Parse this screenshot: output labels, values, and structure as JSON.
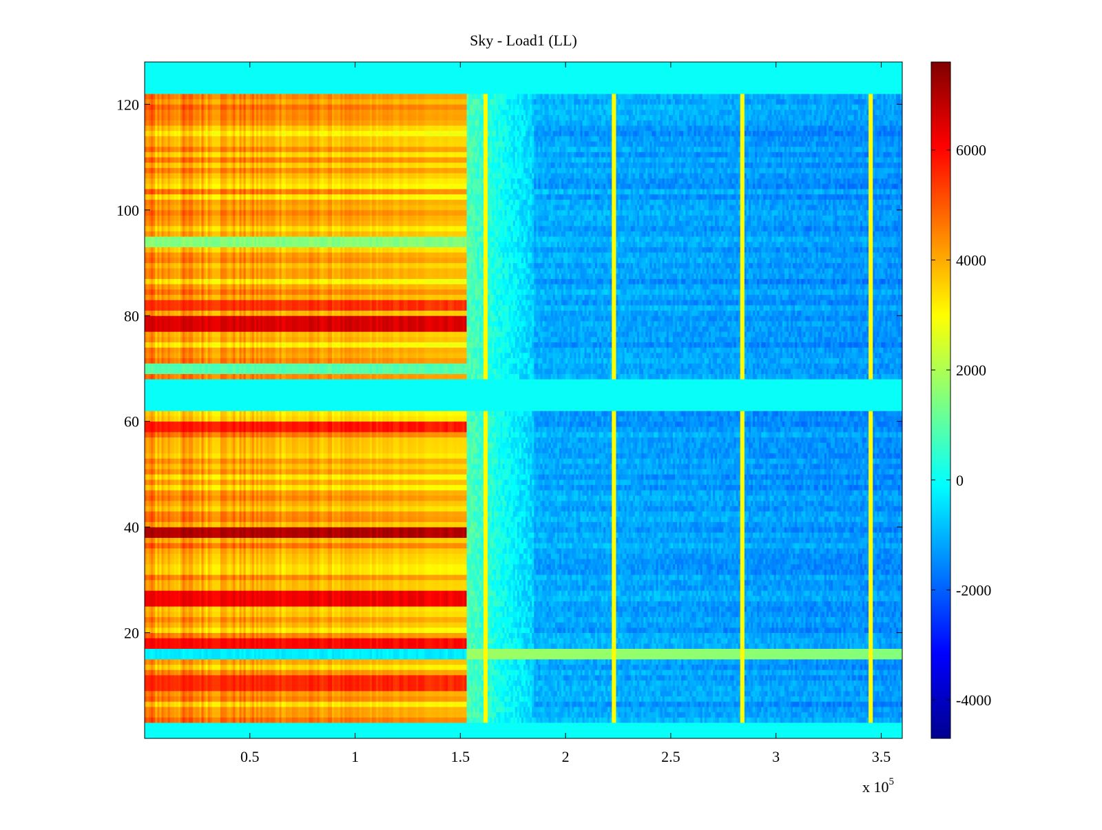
{
  "chart_data": {
    "type": "heatmap",
    "title": "Sky - Load1 (LL)",
    "xlabel": "",
    "ylabel": "",
    "x_exponent_label": "x 10",
    "x_exponent_power": "5",
    "xlim": [
      0,
      3.6
    ],
    "ylim": [
      0,
      128
    ],
    "x_ticks": [
      0.5,
      1,
      1.5,
      2,
      2.5,
      3,
      3.5
    ],
    "x_tick_labels": [
      "0.5",
      "1",
      "1.5",
      "2",
      "2.5",
      "3",
      "3.5"
    ],
    "y_ticks": [
      20,
      40,
      60,
      80,
      100,
      120
    ],
    "y_tick_labels": [
      "20",
      "40",
      "60",
      "80",
      "100",
      "120"
    ],
    "colorbar": {
      "colormap": "jet",
      "clim": [
        -4700,
        7600
      ],
      "ticks": [
        -4000,
        -2000,
        0,
        2000,
        4000,
        6000
      ],
      "tick_labels": [
        "-4000",
        "-2000",
        "0",
        "2000",
        "4000",
        "6000"
      ]
    },
    "blank_rows_value": 0,
    "blank_row_ranges": [
      [
        0,
        3
      ],
      [
        61.5,
        67.5
      ],
      [
        121.5,
        128
      ]
    ],
    "data_row_ranges": [
      [
        3,
        61.5
      ],
      [
        67.5,
        121.5
      ]
    ],
    "regions": [
      {
        "name": "early",
        "x_range": [
          0,
          1.53
        ],
        "typical_value": 4200
      },
      {
        "name": "transition",
        "x_range": [
          1.53,
          1.85
        ],
        "typical_value": 200
      },
      {
        "name": "late",
        "x_range": [
          1.85,
          3.6
        ],
        "typical_value": -1100
      }
    ],
    "hot_rows": [
      {
        "y": 78.5,
        "value": 6500
      },
      {
        "y": 39,
        "value": 7000
      },
      {
        "y": 26.5,
        "value": 6200
      },
      {
        "y": 18,
        "value": 6000
      },
      {
        "y": 59,
        "value": 5800
      },
      {
        "y": 10.5,
        "value": 5600
      },
      {
        "y": 82,
        "value": 5500
      }
    ],
    "cool_rows_in_early_region": [
      {
        "y": 16,
        "value": -300
      },
      {
        "y": 70,
        "value": 900
      },
      {
        "y": 94,
        "value": 1500
      }
    ],
    "vertical_streaks": [
      {
        "x": 1.62,
        "value": 3000
      },
      {
        "x": 2.23,
        "value": 3000
      },
      {
        "x": 2.84,
        "value": 3000
      },
      {
        "x": 3.45,
        "value": 3000
      }
    ],
    "horizontal_streak": {
      "y": 16,
      "x_range": [
        1.53,
        3.6
      ],
      "value": 1800
    }
  }
}
